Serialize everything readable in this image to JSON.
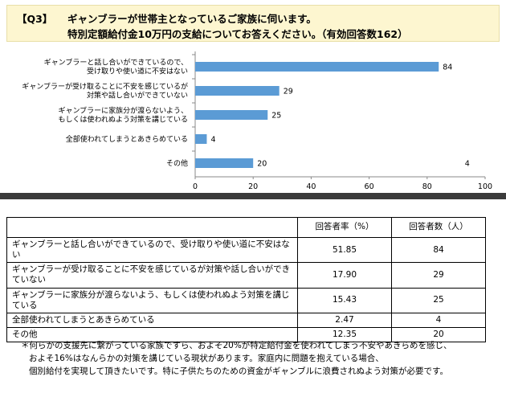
{
  "header": {
    "q_label": "【Q3】",
    "line1": "ギャンブラーが世帯主となっているご家族に伺います。",
    "line2": "特別定額給付金10万円の支給についてお答えください。（有効回答数162）"
  },
  "chart_data": {
    "type": "bar",
    "orientation": "horizontal",
    "categories": [
      [
        "ギャンブラーと話し合いができているので、",
        "受け取りや使い道に不安はない"
      ],
      [
        "ギャンブラーが受け取ることに不安を感じているが",
        "対策や話し合いができていない"
      ],
      [
        "ギャンブラーに家族分が渡らないよう、",
        "もしくは使われぬよう対策を講じている"
      ],
      [
        "全部使われてしまうとあきらめている"
      ],
      [
        "その他"
      ]
    ],
    "values": [
      84,
      29,
      25,
      4,
      20
    ],
    "xlim": [
      0,
      100
    ],
    "xticks": [
      0,
      20,
      40,
      60,
      80,
      100
    ],
    "bar_color": "#5b9bd5",
    "stray_label": "4",
    "stray_color": "#9a9a9a"
  },
  "table": {
    "headers": [
      "",
      "回答者率（%）",
      "回答者数（人）"
    ],
    "rows": [
      {
        "item": "ギャンブラーと話し合いができているので、受け取りや使い道に不安はない",
        "rate": "51.85",
        "count": "84"
      },
      {
        "item": "ギャンブラーが受け取ることに不安を感じているが対策や話し合いができていない",
        "rate": "17.90",
        "count": "29"
      },
      {
        "item": "ギャンブラーに家族分が渡らないよう、もしくは使われぬよう対策を講じている",
        "rate": "15.43",
        "count": "25"
      },
      {
        "item": "全部使われてしまうとあきらめている",
        "rate": "2.47",
        "count": "4"
      },
      {
        "item": "その他",
        "rate": "12.35",
        "count": "20"
      }
    ]
  },
  "notes": [
    "＊何らかの支援先に繋がっている家族ですら、およそ20%が特定給付金を使われてしまう不安やあきらめを感じ、",
    "およそ16%はなんらかの対策を講じている現状があります。家庭内に問題を抱えている場合、",
    "個別給付を実現して頂きたいです。特に子供たちのための資金がギャンブルに浪費されぬよう対策が必要です。"
  ]
}
